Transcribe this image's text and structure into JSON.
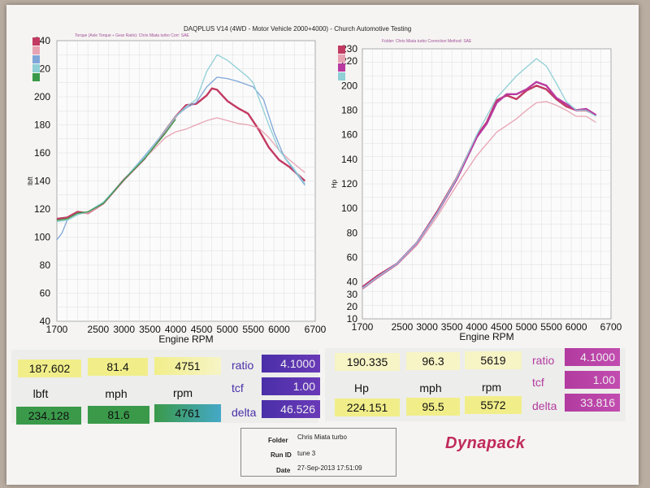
{
  "header": {
    "title": "DAQPLUS V14 (4WD - Motor Vehicle 2000+4000) - Church Automotive Testing",
    "left_subtitle": "Torque (Axle Torque ÷ Gear Ratio): Chris Miata turbo    Corr: SAE",
    "right_subtitle": "Folder: Chris Miata turbo    Correction Method: SAE"
  },
  "colors": {
    "red": "#c23a62",
    "pink": "#e8a3b3",
    "blue": "#7fa6d8",
    "cyan": "#8fcfd6",
    "green": "#3a9a4a",
    "magenta": "#b83aa0",
    "yellow": "#f1ee8a"
  },
  "chart_data": [
    {
      "type": "line",
      "xlabel": "Engine RPM",
      "ylabel": "lbft",
      "xlim": [
        1700,
        6700
      ],
      "ylim": [
        40,
        240
      ],
      "x_ticks": [
        "1700",
        "2500",
        "3000",
        "3500",
        "4000",
        "4500",
        "5000",
        "5500",
        "6000",
        "6700"
      ],
      "y_ticks": [
        "40",
        "60",
        "80",
        "100",
        "120",
        "140",
        "160",
        "180",
        "200",
        "220",
        "240"
      ],
      "grid": true,
      "series": [
        {
          "color": "red",
          "x": [
            1700,
            1900,
            2100,
            2300,
            2600,
            3000,
            3400,
            3800,
            4000,
            4200,
            4400,
            4600,
            4700,
            4800,
            5000,
            5200,
            5400,
            5600,
            5800,
            6000,
            6200,
            6500
          ],
          "y": [
            113,
            114,
            118,
            117,
            124,
            141,
            156,
            176,
            186,
            194,
            195,
            201,
            206,
            205,
            197,
            192,
            188,
            177,
            164,
            155,
            150,
            140
          ]
        },
        {
          "color": "pink",
          "x": [
            1700,
            1900,
            2100,
            2300,
            2600,
            3000,
            3400,
            3800,
            4000,
            4200,
            4400,
            4600,
            4800,
            5000,
            5200,
            5400,
            5600,
            5800,
            6000,
            6200,
            6500
          ],
          "y": [
            112,
            113,
            117,
            117,
            124,
            141,
            156,
            171,
            175,
            177,
            180,
            183,
            185,
            183,
            181,
            180,
            178,
            171,
            162,
            155,
            146
          ]
        },
        {
          "color": "blue",
          "x": [
            1700,
            1800,
            1900,
            2100,
            2300,
            2600,
            3000,
            3400,
            3800,
            4000,
            4200,
            4400,
            4600,
            4800,
            5000,
            5200,
            5500,
            5700,
            5900,
            6100,
            6300,
            6500
          ],
          "y": [
            98,
            103,
            112,
            116,
            118,
            124,
            141,
            158,
            176,
            186,
            192,
            196,
            207,
            214,
            213,
            211,
            207,
            198,
            175,
            157,
            147,
            137
          ]
        },
        {
          "color": "cyan",
          "x": [
            1700,
            1900,
            2100,
            2300,
            2600,
            3000,
            3400,
            3800,
            4000,
            4200,
            4400,
            4600,
            4800,
            5000,
            5200,
            5400,
            5500,
            5600,
            5800,
            6000,
            6300,
            6500
          ],
          "y": [
            111,
            112,
            116,
            118,
            125,
            141,
            157,
            176,
            186,
            193,
            198,
            218,
            230,
            226,
            220,
            214,
            210,
            200,
            180,
            162,
            148,
            138
          ]
        },
        {
          "color": "green",
          "x": [
            1700,
            1900,
            2100,
            2300,
            2600,
            3000,
            3400,
            3800,
            4000
          ],
          "y": [
            112,
            113,
            117,
            118,
            124,
            141,
            156,
            174,
            184
          ]
        }
      ]
    },
    {
      "type": "line",
      "xlabel": "Engine RPM",
      "ylabel": "Hp",
      "xlim": [
        1700,
        6700
      ],
      "ylim": [
        10,
        230
      ],
      "x_ticks": [
        "1700",
        "2500",
        "3000",
        "3500",
        "4000",
        "4500",
        "5000",
        "5500",
        "6000",
        "6700"
      ],
      "y_ticks": [
        "10",
        "20",
        "30",
        "40",
        "60",
        "80",
        "100",
        "120",
        "140",
        "160",
        "180",
        "200",
        "220",
        "230"
      ],
      "grid": true,
      "series": [
        {
          "color": "red",
          "x": [
            1700,
            2000,
            2400,
            2800,
            3200,
            3600,
            4000,
            4200,
            4400,
            4600,
            4800,
            5000,
            5200,
            5400,
            5600,
            5800,
            6000,
            6200,
            6400
          ],
          "y": [
            36,
            45,
            55,
            72,
            97,
            125,
            159,
            170,
            188,
            192,
            189,
            196,
            200,
            197,
            189,
            183,
            180,
            180,
            176
          ]
        },
        {
          "color": "pink",
          "x": [
            1700,
            2000,
            2400,
            2800,
            3200,
            3600,
            4000,
            4400,
            4800,
            5000,
            5200,
            5400,
            5600,
            5800,
            6000,
            6200,
            6400
          ],
          "y": [
            34,
            43,
            54,
            70,
            93,
            119,
            143,
            162,
            173,
            180,
            186,
            187,
            184,
            180,
            175,
            175,
            170
          ]
        },
        {
          "color": "magenta",
          "x": [
            1700,
            2000,
            2400,
            2800,
            3200,
            3600,
            4000,
            4200,
            4400,
            4600,
            4800,
            5000,
            5200,
            5400,
            5600,
            5800,
            6000,
            6200,
            6400
          ],
          "y": [
            35,
            44,
            55,
            72,
            96,
            124,
            158,
            169,
            186,
            193,
            193,
            197,
            203,
            200,
            190,
            185,
            180,
            181,
            176
          ]
        },
        {
          "color": "cyan",
          "x": [
            1700,
            2000,
            2400,
            2800,
            3200,
            3600,
            4000,
            4400,
            4800,
            5000,
            5200,
            5400,
            5600,
            5800,
            6000,
            6200,
            6400
          ],
          "y": [
            35,
            44,
            55,
            72,
            96,
            125,
            160,
            190,
            208,
            215,
            222,
            216,
            202,
            187,
            180,
            180,
            175
          ]
        }
      ]
    }
  ],
  "readouts": {
    "left": {
      "row1": [
        "187.602",
        "81.4",
        "4751"
      ],
      "labels": [
        "lbft",
        "mph",
        "rpm"
      ],
      "row2": [
        "234.128",
        "81.6",
        "4761"
      ],
      "ratio_label": "ratio",
      "ratio_value": "4.1000",
      "tcf_label": "tcf",
      "tcf_value": "1.00",
      "delta_label": "delta",
      "delta_value": "46.526"
    },
    "right": {
      "row1": [
        "190.335",
        "96.3",
        "5619"
      ],
      "labels": [
        "Hp",
        "mph",
        "rpm"
      ],
      "row2": [
        "224.151",
        "95.5",
        "5572"
      ],
      "ratio_label": "ratio",
      "ratio_value": "4.1000",
      "tcf_label": "tcf",
      "tcf_value": "1.00",
      "delta_label": "delta",
      "delta_value": "33.816"
    }
  },
  "footer": {
    "folder_label": "Folder",
    "folder_value": "Chris Miata turbo",
    "run_label": "Run ID",
    "run_value": "tune 3",
    "date_label": "Date",
    "date_value": "27-Sep-2013 17:51:09",
    "brand": "Dynapack"
  }
}
